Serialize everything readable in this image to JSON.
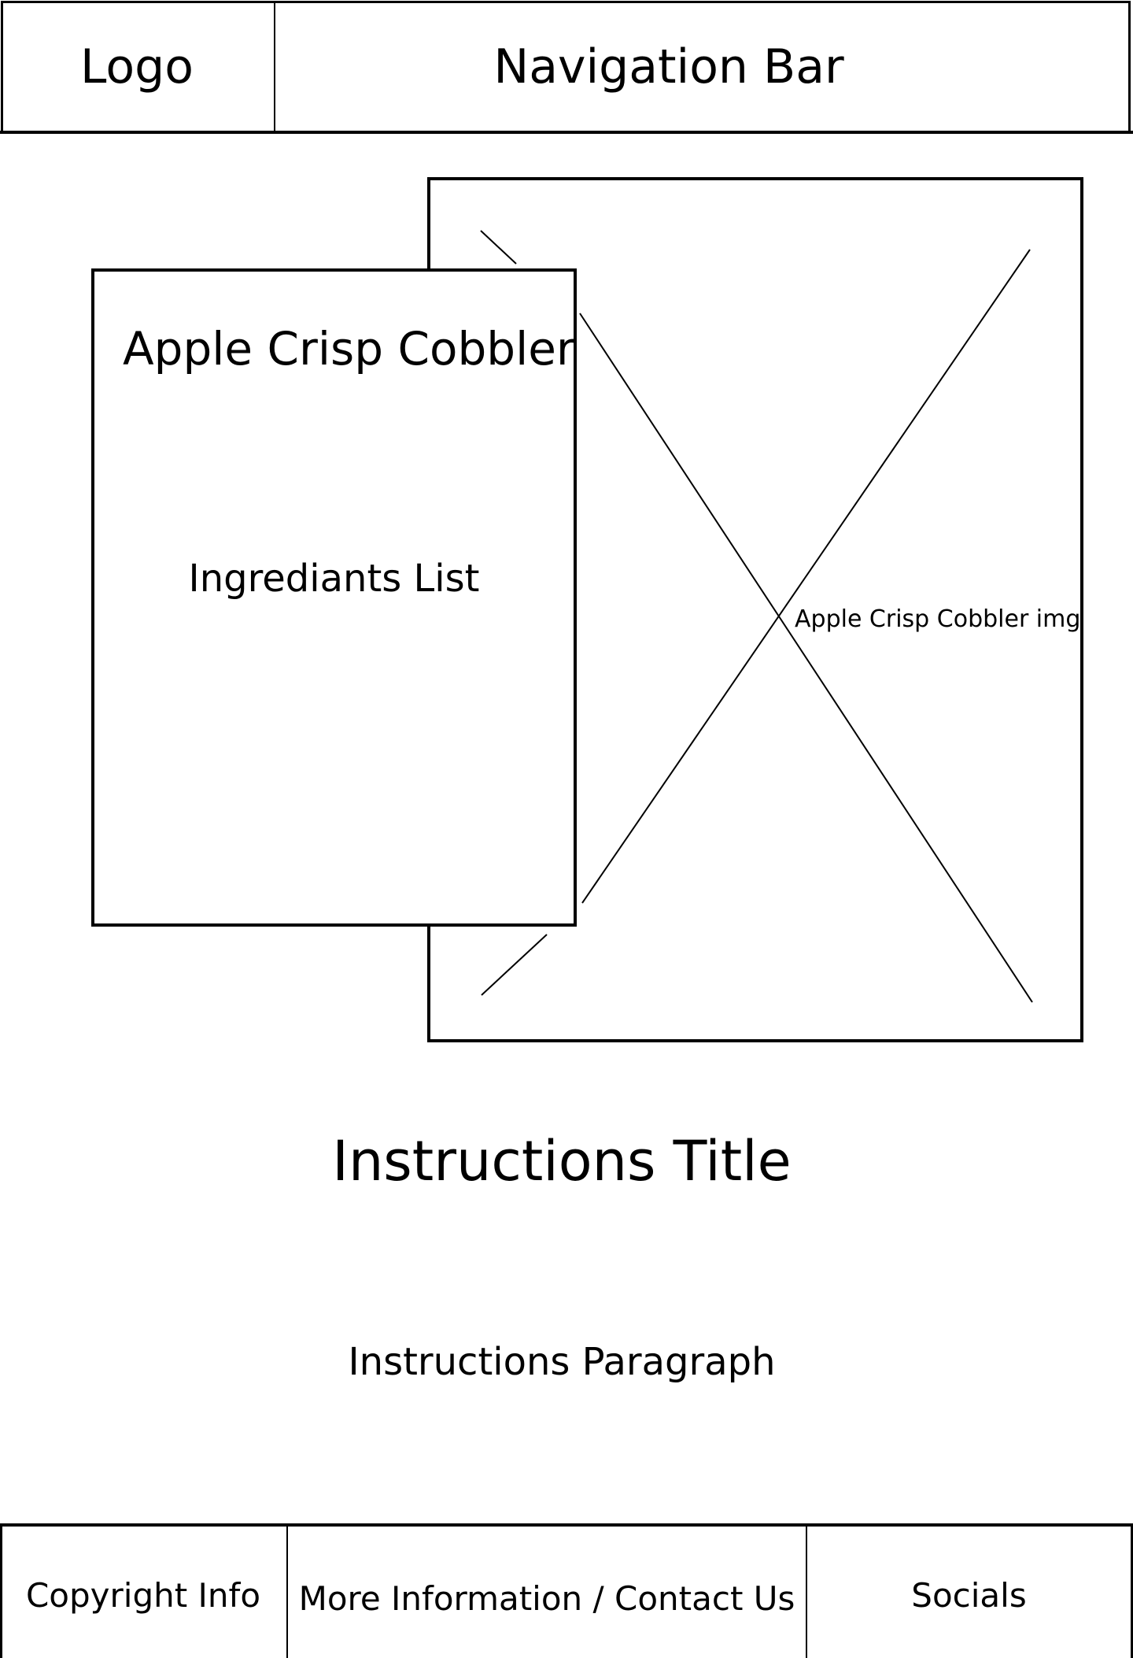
{
  "header": {
    "logo_label": "Logo",
    "nav_label": "Navigation Bar"
  },
  "hero": {
    "image_caption": "Apple Crisp Cobbler img",
    "card_title": "Apple Crisp Cobbler",
    "card_list_label": "Ingrediants List"
  },
  "instructions": {
    "title": "Instructions Title",
    "paragraph": "Instructions Paragraph"
  },
  "footer": {
    "copyright": "Copyright Info",
    "more_info": "More Information / Contact Us",
    "socials": "Socials"
  }
}
